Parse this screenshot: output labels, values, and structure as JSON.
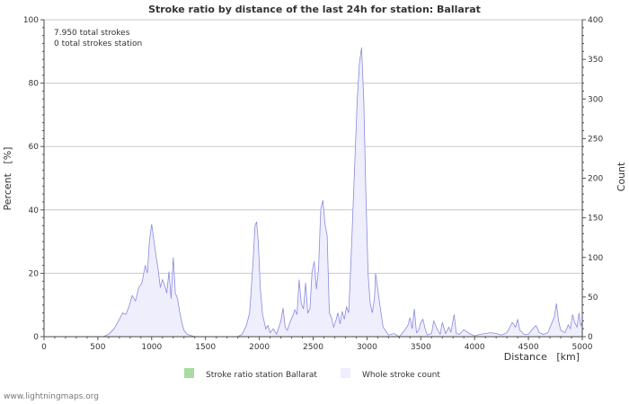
{
  "chart_data": {
    "type": "area",
    "title": "Stroke ratio by distance of the last 24h for station: Ballarat",
    "xlabel": "Distance   [km]",
    "ylabel_left": "Percent   [%]",
    "ylabel_right": "Count",
    "xlim": [
      0,
      5000
    ],
    "ylim_left": [
      0,
      100
    ],
    "ylim_right": [
      0,
      400
    ],
    "x_ticks": [
      0,
      500,
      1000,
      1500,
      2000,
      2500,
      3000,
      3500,
      4000,
      4500,
      5000
    ],
    "y_left_ticks": [
      0,
      20,
      40,
      60,
      80,
      100
    ],
    "y_right_ticks": [
      0,
      50,
      100,
      150,
      200,
      250,
      300,
      350,
      400
    ],
    "grid": true,
    "annotations": [
      "7.950 total strokes",
      "0 total strokes station"
    ],
    "legend": [
      {
        "label": "Stroke ratio station Ballarat",
        "color": "#a8dca0"
      },
      {
        "label": "Whole stroke count",
        "color": "#eeeefc"
      }
    ],
    "series": [
      {
        "name": "Whole stroke count",
        "axis": "right",
        "points": [
          [
            0,
            0
          ],
          [
            550,
            0
          ],
          [
            600,
            3
          ],
          [
            650,
            10
          ],
          [
            700,
            22
          ],
          [
            730,
            30
          ],
          [
            760,
            28
          ],
          [
            790,
            38
          ],
          [
            820,
            52
          ],
          [
            850,
            45
          ],
          [
            880,
            62
          ],
          [
            910,
            68
          ],
          [
            940,
            90
          ],
          [
            960,
            80
          ],
          [
            980,
            122
          ],
          [
            1000,
            142
          ],
          [
            1020,
            122
          ],
          [
            1040,
            102
          ],
          [
            1060,
            85
          ],
          [
            1080,
            62
          ],
          [
            1100,
            72
          ],
          [
            1120,
            65
          ],
          [
            1140,
            55
          ],
          [
            1160,
            82
          ],
          [
            1180,
            48
          ],
          [
            1200,
            100
          ],
          [
            1220,
            55
          ],
          [
            1240,
            48
          ],
          [
            1260,
            32
          ],
          [
            1280,
            18
          ],
          [
            1300,
            8
          ],
          [
            1330,
            3
          ],
          [
            1400,
            0
          ],
          [
            1800,
            0
          ],
          [
            1840,
            3
          ],
          [
            1880,
            14
          ],
          [
            1910,
            30
          ],
          [
            1940,
            90
          ],
          [
            1960,
            140
          ],
          [
            1975,
            145
          ],
          [
            1990,
            120
          ],
          [
            2010,
            60
          ],
          [
            2030,
            28
          ],
          [
            2060,
            10
          ],
          [
            2080,
            14
          ],
          [
            2100,
            5
          ],
          [
            2130,
            10
          ],
          [
            2160,
            3
          ],
          [
            2200,
            20
          ],
          [
            2220,
            36
          ],
          [
            2240,
            12
          ],
          [
            2260,
            8
          ],
          [
            2290,
            20
          ],
          [
            2310,
            26
          ],
          [
            2330,
            34
          ],
          [
            2350,
            28
          ],
          [
            2370,
            72
          ],
          [
            2390,
            42
          ],
          [
            2410,
            35
          ],
          [
            2430,
            68
          ],
          [
            2450,
            30
          ],
          [
            2470,
            35
          ],
          [
            2490,
            82
          ],
          [
            2510,
            95
          ],
          [
            2530,
            60
          ],
          [
            2550,
            85
          ],
          [
            2570,
            160
          ],
          [
            2590,
            172
          ],
          [
            2610,
            142
          ],
          [
            2630,
            128
          ],
          [
            2650,
            30
          ],
          [
            2670,
            24
          ],
          [
            2690,
            12
          ],
          [
            2710,
            20
          ],
          [
            2730,
            30
          ],
          [
            2750,
            16
          ],
          [
            2770,
            32
          ],
          [
            2790,
            22
          ],
          [
            2810,
            38
          ],
          [
            2830,
            30
          ],
          [
            2850,
            90
          ],
          [
            2870,
            160
          ],
          [
            2890,
            230
          ],
          [
            2910,
            300
          ],
          [
            2930,
            345
          ],
          [
            2950,
            365
          ],
          [
            2970,
            300
          ],
          [
            2990,
            180
          ],
          [
            3010,
            80
          ],
          [
            3030,
            42
          ],
          [
            3050,
            30
          ],
          [
            3070,
            50
          ],
          [
            3080,
            80
          ],
          [
            3100,
            60
          ],
          [
            3120,
            40
          ],
          [
            3150,
            12
          ],
          [
            3200,
            2
          ],
          [
            3250,
            4
          ],
          [
            3300,
            0
          ],
          [
            3350,
            8
          ],
          [
            3380,
            14
          ],
          [
            3400,
            24
          ],
          [
            3420,
            10
          ],
          [
            3440,
            35
          ],
          [
            3460,
            5
          ],
          [
            3480,
            8
          ],
          [
            3500,
            18
          ],
          [
            3520,
            22
          ],
          [
            3540,
            10
          ],
          [
            3560,
            2
          ],
          [
            3600,
            4
          ],
          [
            3620,
            20
          ],
          [
            3650,
            10
          ],
          [
            3680,
            3
          ],
          [
            3700,
            18
          ],
          [
            3730,
            4
          ],
          [
            3760,
            12
          ],
          [
            3780,
            6
          ],
          [
            3810,
            28
          ],
          [
            3830,
            4
          ],
          [
            3860,
            3
          ],
          [
            3900,
            9
          ],
          [
            3950,
            4
          ],
          [
            4000,
            1
          ],
          [
            4050,
            3
          ],
          [
            4100,
            4
          ],
          [
            4150,
            5
          ],
          [
            4200,
            4
          ],
          [
            4250,
            2
          ],
          [
            4300,
            5
          ],
          [
            4350,
            18
          ],
          [
            4380,
            12
          ],
          [
            4400,
            22
          ],
          [
            4420,
            8
          ],
          [
            4460,
            3
          ],
          [
            4500,
            3
          ],
          [
            4540,
            10
          ],
          [
            4570,
            14
          ],
          [
            4600,
            5
          ],
          [
            4640,
            3
          ],
          [
            4680,
            5
          ],
          [
            4710,
            15
          ],
          [
            4740,
            25
          ],
          [
            4760,
            42
          ],
          [
            4780,
            20
          ],
          [
            4800,
            8
          ],
          [
            4840,
            5
          ],
          [
            4870,
            15
          ],
          [
            4890,
            10
          ],
          [
            4910,
            28
          ],
          [
            4930,
            18
          ],
          [
            4950,
            12
          ],
          [
            4970,
            30
          ],
          [
            4985,
            14
          ],
          [
            5000,
            18
          ]
        ]
      },
      {
        "name": "Stroke ratio station Ballarat",
        "axis": "left",
        "points": []
      }
    ]
  },
  "footer": "www.lightningmaps.org"
}
